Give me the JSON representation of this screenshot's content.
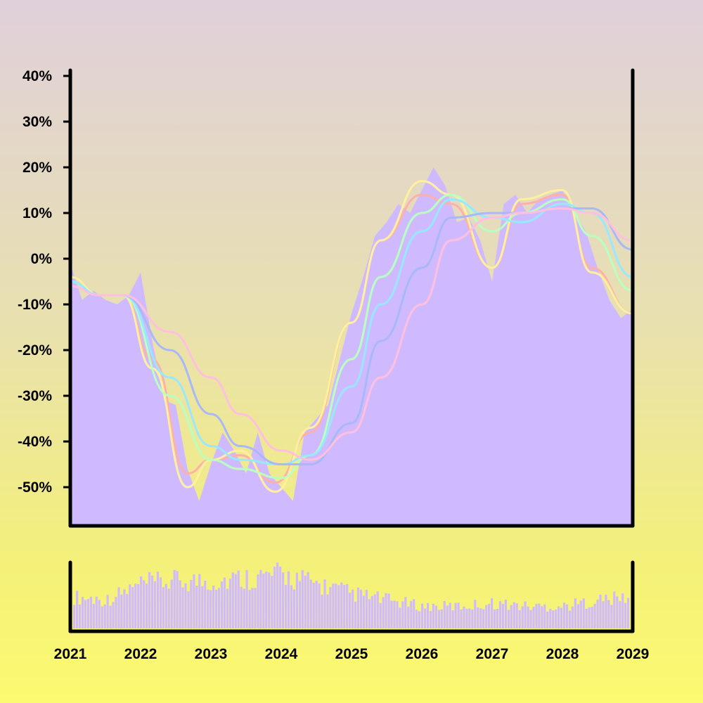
{
  "colors": {
    "area": "#d0baff",
    "axis": "#000000",
    "ma_lines": [
      "#ffb0a8",
      "#fff0a0",
      "#b8ffc0",
      "#98e8ff",
      "#a8b8f8",
      "#ffc0e0"
    ]
  },
  "chart_data": [
    {
      "type": "area",
      "title": "",
      "xlabel": "",
      "ylabel": "",
      "ylim": [
        -58,
        42
      ],
      "xlim": [
        "2021-01",
        "2029-01"
      ],
      "yticks": [
        40,
        30,
        20,
        10,
        0,
        -10,
        -20,
        -30,
        -40,
        -50
      ],
      "ytick_labels": [
        "40%",
        "30%",
        "20%",
        "10%",
        "0%",
        "-10%",
        "-20%",
        "-30%",
        "-40%",
        "-50%"
      ],
      "grid": false,
      "series": [
        {
          "values_description": "monthly percent change",
          "x": [
            "2021-01",
            "2021-03",
            "2021-05",
            "2021-07",
            "2021-09",
            "2021-11",
            "2022-01",
            "2022-03",
            "2022-05",
            "2022-07",
            "2022-09",
            "2022-11",
            "2023-01",
            "2023-03",
            "2023-05",
            "2023-07",
            "2023-09",
            "2023-11",
            "2024-01",
            "2024-03",
            "2024-05",
            "2024-07",
            "2024-09",
            "2024-11",
            "2025-01",
            "2025-03",
            "2025-05",
            "2025-07",
            "2025-09",
            "2025-11",
            "2026-01",
            "2026-03",
            "2026-05",
            "2026-07",
            "2026-09",
            "2026-11",
            "2027-01",
            "2027-03",
            "2027-05",
            "2027-07",
            "2027-09",
            "2027-11",
            "2028-01",
            "2028-03",
            "2028-05",
            "2028-07",
            "2028-09",
            "2028-11",
            "2029-01"
          ],
          "y": [
            -1,
            -9,
            -7,
            -9,
            -10,
            -8,
            -3,
            -18,
            -31,
            -32,
            -46,
            -53,
            -45,
            -38,
            -42,
            -47,
            -38,
            -47,
            -50,
            -53,
            -38,
            -35,
            -32,
            -22,
            -12,
            -4,
            5,
            8,
            12,
            10,
            15,
            20,
            16,
            8,
            9,
            4,
            -5,
            12,
            14,
            10,
            13,
            14,
            15,
            10,
            6,
            -2,
            -9,
            -13,
            -11
          ]
        }
      ],
      "moving_averages": [
        {
          "x": [
            "2021-01",
            "2021-06",
            "2021-10",
            "2022-03",
            "2022-09",
            "2023-01",
            "2023-06",
            "2023-12",
            "2024-06",
            "2025-01",
            "2025-06",
            "2026-01",
            "2026-06",
            "2027-01",
            "2027-06",
            "2028-01",
            "2028-06",
            "2029-01"
          ],
          "y": [
            -4,
            -8,
            -8,
            -22,
            -47,
            -44,
            -43,
            -49,
            -38,
            -14,
            4,
            14,
            12,
            -2,
            12,
            14,
            -2,
            -12
          ]
        },
        {
          "x": [
            "2021-01",
            "2021-06",
            "2021-10",
            "2022-03",
            "2022-09",
            "2023-01",
            "2023-06",
            "2023-12",
            "2024-06",
            "2025-01",
            "2025-06",
            "2026-01",
            "2026-06",
            "2027-01",
            "2027-06",
            "2028-01",
            "2028-06",
            "2029-01"
          ],
          "y": [
            -4,
            -8,
            -8,
            -24,
            -50,
            -44,
            -42,
            -51,
            -37,
            -14,
            4,
            17,
            14,
            -2,
            13,
            15,
            -3,
            -12
          ]
        },
        {
          "x": [
            "2021-01",
            "2021-06",
            "2021-10",
            "2022-06",
            "2023-01",
            "2023-06",
            "2024-01",
            "2024-06",
            "2025-01",
            "2025-06",
            "2026-01",
            "2026-06",
            "2027-01",
            "2027-06",
            "2028-01",
            "2028-06",
            "2029-01"
          ],
          "y": [
            -5,
            -8,
            -8,
            -30,
            -44,
            -46,
            -48,
            -43,
            -22,
            -4,
            10,
            14,
            6,
            10,
            13,
            5,
            -7
          ]
        },
        {
          "x": [
            "2021-01",
            "2021-06",
            "2021-10",
            "2022-06",
            "2023-01",
            "2023-06",
            "2024-01",
            "2024-06",
            "2025-01",
            "2025-06",
            "2026-01",
            "2026-06",
            "2027-01",
            "2027-06",
            "2028-01",
            "2028-06",
            "2029-01"
          ],
          "y": [
            -5,
            -8,
            -8,
            -26,
            -41,
            -44,
            -45,
            -43,
            -28,
            -10,
            6,
            13,
            9,
            8,
            12,
            10,
            -4
          ]
        },
        {
          "x": [
            "2021-01",
            "2021-06",
            "2021-10",
            "2022-06",
            "2023-01",
            "2023-06",
            "2024-01",
            "2024-06",
            "2025-01",
            "2025-06",
            "2026-01",
            "2026-06",
            "2027-01",
            "2027-06",
            "2028-01",
            "2028-06",
            "2029-01"
          ],
          "y": [
            -6,
            -8,
            -8,
            -20,
            -34,
            -41,
            -45,
            -45,
            -36,
            -18,
            -2,
            9,
            10,
            10,
            11,
            11,
            2
          ]
        },
        {
          "x": [
            "2021-01",
            "2021-06",
            "2021-10",
            "2022-06",
            "2023-01",
            "2023-06",
            "2024-01",
            "2024-06",
            "2025-01",
            "2025-06",
            "2026-01",
            "2026-06",
            "2027-01",
            "2027-06",
            "2028-01",
            "2028-06",
            "2029-01"
          ],
          "y": [
            -6,
            -8,
            -8,
            -16,
            -26,
            -34,
            -42,
            -44,
            -38,
            -26,
            -10,
            4,
            9,
            10,
            11,
            10,
            4
          ]
        }
      ]
    },
    {
      "type": "bar",
      "title": "",
      "xlabel": "",
      "ylabel": "",
      "xticks": [
        "2021",
        "2022",
        "2023",
        "2024",
        "2025",
        "2026",
        "2027",
        "2028",
        "2029"
      ],
      "values_description": "relative volume",
      "x": [
        "2021-01",
        "2021-07",
        "2022-01",
        "2022-07",
        "2023-01",
        "2023-07",
        "2024-01",
        "2024-07",
        "2025-01",
        "2025-07",
        "2026-01",
        "2026-07",
        "2027-01",
        "2027-07",
        "2028-01",
        "2028-07",
        "2029-01"
      ],
      "values": [
        0.5,
        0.45,
        0.7,
        0.75,
        0.75,
        0.8,
        0.85,
        0.7,
        0.55,
        0.45,
        0.35,
        0.35,
        0.4,
        0.35,
        0.35,
        0.45,
        0.5
      ]
    }
  ]
}
